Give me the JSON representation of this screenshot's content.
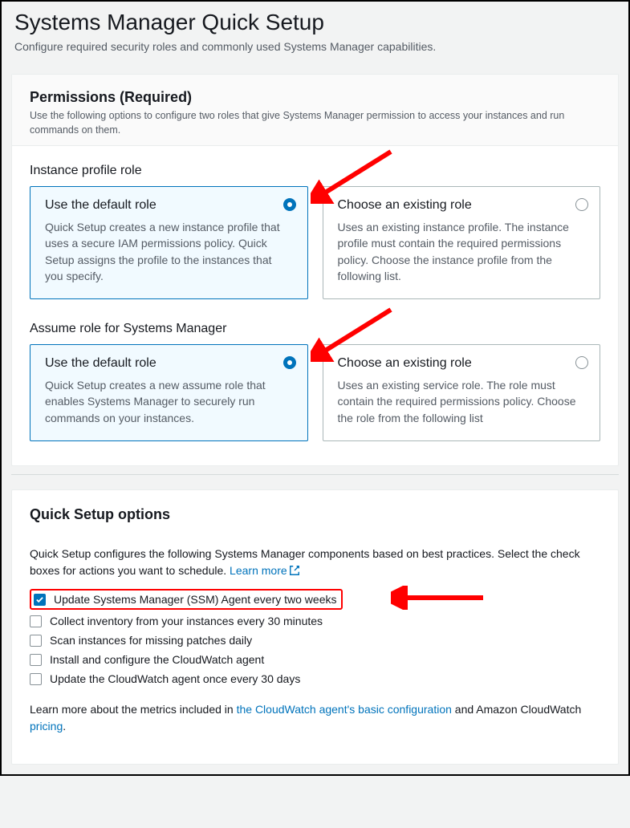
{
  "page": {
    "title": "Systems Manager Quick Setup",
    "subtitle": "Configure required security roles and commonly used Systems Manager capabilities."
  },
  "permissions": {
    "heading": "Permissions (Required)",
    "description": "Use the following options to configure two roles that give Systems Manager permission to access your instances and run commands on them.",
    "instance_profile": {
      "label": "Instance profile role",
      "options": [
        {
          "title": "Use the default role",
          "desc": "Quick Setup creates a new instance profile that uses a secure IAM permissions policy. Quick Setup assigns the profile to the instances that you specify.",
          "selected": true
        },
        {
          "title": "Choose an existing role",
          "desc": "Uses an existing instance profile. The instance profile must contain the required permissions policy. Choose the instance profile from the following list.",
          "selected": false
        }
      ]
    },
    "assume_role": {
      "label": "Assume role for Systems Manager",
      "options": [
        {
          "title": "Use the default role",
          "desc": "Quick Setup creates a new assume role that enables Systems Manager to securely run commands on your instances.",
          "selected": true
        },
        {
          "title": "Choose an existing role",
          "desc": "Uses an existing service role. The role must contain the required permissions policy. Choose the role from the following list",
          "selected": false
        }
      ]
    }
  },
  "quick_setup": {
    "heading": "Quick Setup options",
    "intro_prefix": "Quick Setup configures the following Systems Manager components based on best practices. Select the check boxes for actions you want to schedule. ",
    "learn_more": "Learn more",
    "options": [
      {
        "label": "Update Systems Manager (SSM) Agent every two weeks",
        "checked": true,
        "highlight": true
      },
      {
        "label": "Collect inventory from your instances every 30 minutes",
        "checked": false,
        "highlight": false
      },
      {
        "label": "Scan instances for missing patches daily",
        "checked": false,
        "highlight": false
      },
      {
        "label": "Install and configure the CloudWatch agent",
        "checked": false,
        "highlight": false
      },
      {
        "label": "Update the CloudWatch agent once every 30 days",
        "checked": false,
        "highlight": false
      }
    ],
    "footer_prefix": "Learn more about the metrics included in ",
    "footer_link1": "the CloudWatch agent's basic configuration",
    "footer_mid": " and Amazon CloudWatch ",
    "footer_link2": "pricing",
    "footer_suffix": "."
  },
  "colors": {
    "accent": "#0073bb",
    "annotation": "#ff0000"
  }
}
